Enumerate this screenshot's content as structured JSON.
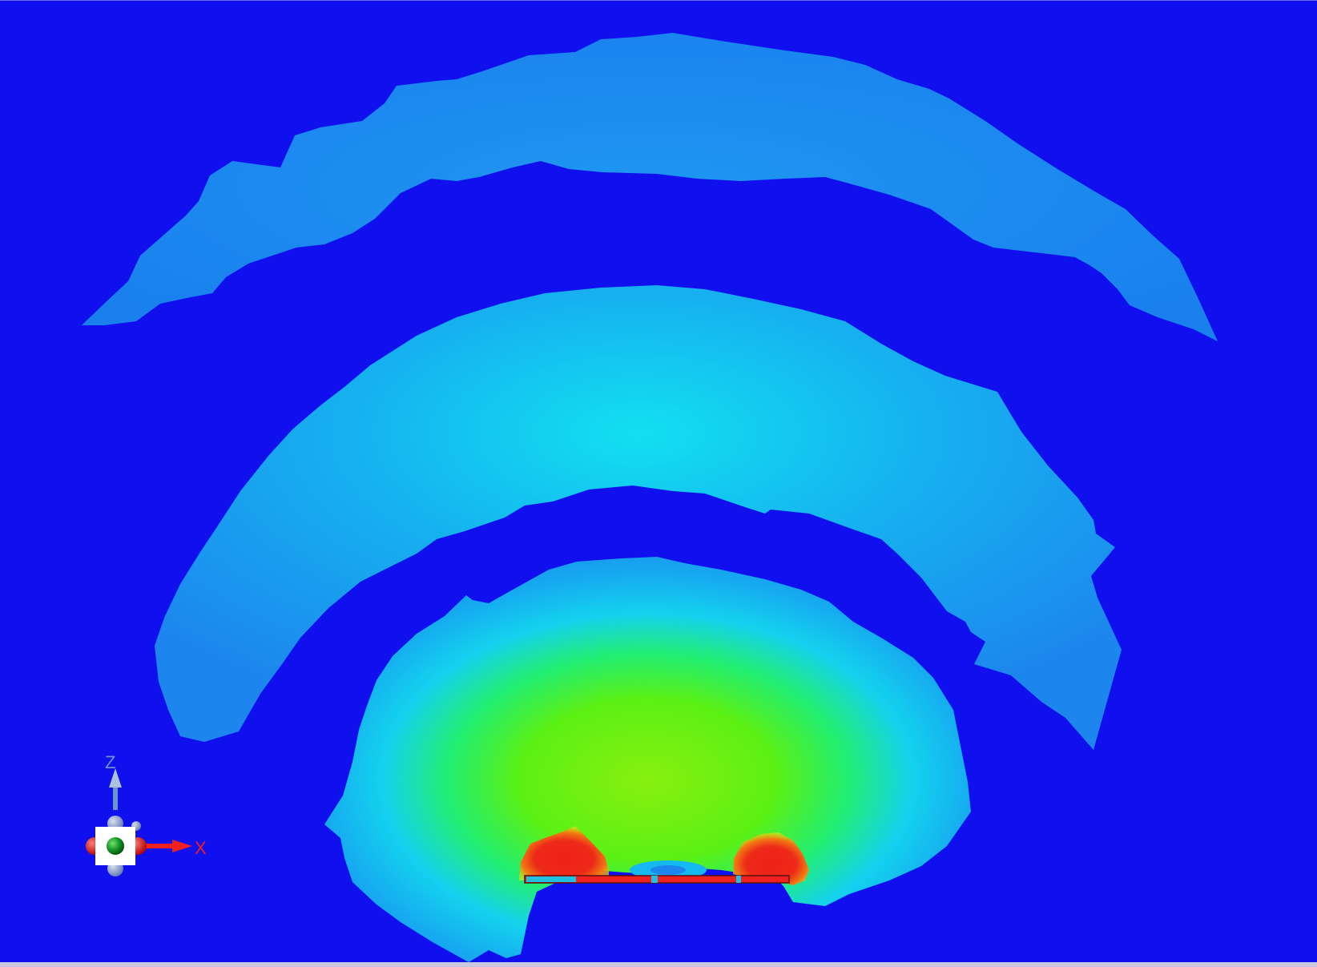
{
  "scene": {
    "background_color": "#1010ee",
    "colormap": [
      "#1010ee",
      "#1b7cf0",
      "#14d6ee",
      "#22f07a",
      "#7cf010",
      "#f0e010",
      "#ee2218"
    ]
  },
  "triad": {
    "z_label": "Z",
    "x_label": "X",
    "z_color": "#6d95c8",
    "x_color": "#ee2020",
    "center_icon": "green-sphere-icon"
  }
}
